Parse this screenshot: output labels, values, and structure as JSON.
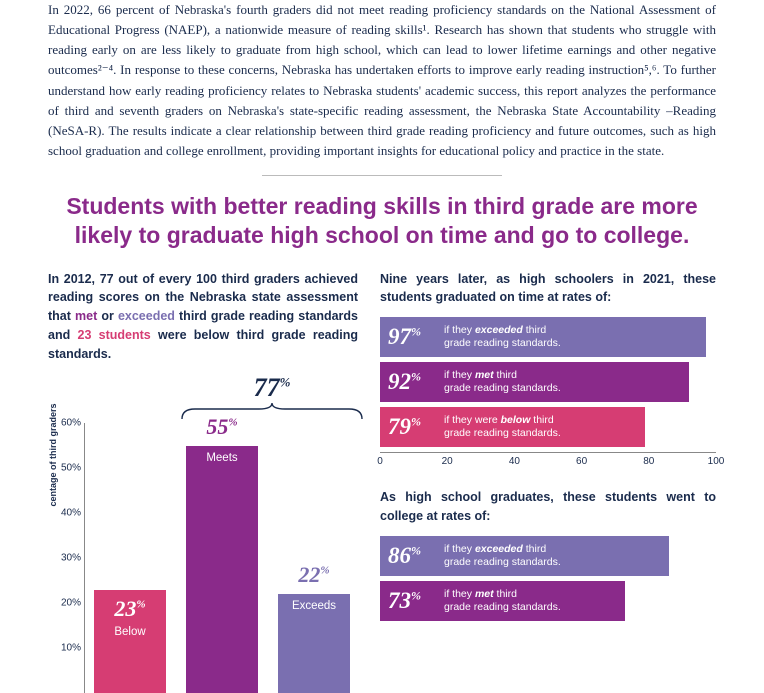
{
  "colors": {
    "text": "#1a2b4c",
    "headline": "#8a2a8a",
    "pink": "#d63d73",
    "purple": "#8a2a8a",
    "lavender": "#7a6fb0"
  },
  "intro": "In 2022, 66 percent of Nebraska's fourth graders did not meet reading proficiency standards on the National Assessment of Educational Progress (NAEP), a nationwide measure of reading skills¹. Research has shown that students who struggle with reading early on are less likely to graduate from high school, which can lead to lower lifetime earnings and other negative outcomes²⁻⁴. In response to these concerns, Nebraska has undertaken efforts to improve early reading instruction⁵,⁶. To further understand how early reading proficiency relates to Nebraska students' academic success, this report analyzes the performance of third and seventh graders on Nebraska's state-specific reading assessment, the Nebraska State Accountability –Reading (NeSA-R). The results indicate a clear relationship between third grade reading proficiency and future outcomes, such as high school graduation and college enrollment, providing important insights for educational policy and practice in the state.",
  "headline": "Students with better reading skills in third grade are more likely to graduate high school on time and go to college.",
  "left_sub_pre": "In 2012, ",
  "left_sub_b1": "77",
  "left_sub_mid1": " out of every 100 third graders achieved reading scores on the Nebraska state assessment that ",
  "left_sub_met": "met",
  "left_sub_or": " or ",
  "left_sub_exc": "exceeded",
  "left_sub_mid2": " third grade reading standards and ",
  "left_sub_below": "23 students",
  "left_sub_end": " were below third grade reading standards.",
  "bar_chart": {
    "ylabel": "centage of third graders",
    "ylim": [
      0,
      60
    ],
    "ytick_step": 10,
    "brace_pct": "77",
    "bars": [
      {
        "label": "Below",
        "pct": "23",
        "value": 23,
        "color": "#d63d73",
        "pct_color": "#ffffff"
      },
      {
        "label": "Meets",
        "pct": "55",
        "value": 55,
        "color": "#8a2a8a",
        "pct_color": "#8a2a8a"
      },
      {
        "label": "Exceeds",
        "pct": "22",
        "value": 22,
        "color": "#7a6fb0",
        "pct_color": "#7a6fb0"
      }
    ]
  },
  "right_sub1": "Nine years later, as high schoolers in 2021, these students graduated on time at rates of:",
  "grad_bars": {
    "xlim": [
      0,
      100
    ],
    "xtick_step": 20,
    "rows": [
      {
        "pct": "97",
        "color": "#7a6fb0",
        "l1": "if they ",
        "em": "exceeded",
        "l2": " third",
        "l3": "grade reading standards."
      },
      {
        "pct": "92",
        "color": "#8a2a8a",
        "l1": "if they ",
        "em": "met",
        "l2": " third",
        "l3": "grade reading standards."
      },
      {
        "pct": "79",
        "color": "#d63d73",
        "l1": "if they were ",
        "em": "below",
        "l2": " third",
        "l3": "grade reading standards."
      }
    ]
  },
  "right_sub2": "As high school graduates, these students went to college at rates of:",
  "college_bars": {
    "rows": [
      {
        "pct": "86",
        "color": "#7a6fb0",
        "l1": "if they ",
        "em": "exceeded",
        "l2": " third",
        "l3": "grade reading standards."
      },
      {
        "pct": "73",
        "color": "#8a2a8a",
        "l1": "if they ",
        "em": "met",
        "l2": " third",
        "l3": "grade reading standards."
      }
    ]
  }
}
